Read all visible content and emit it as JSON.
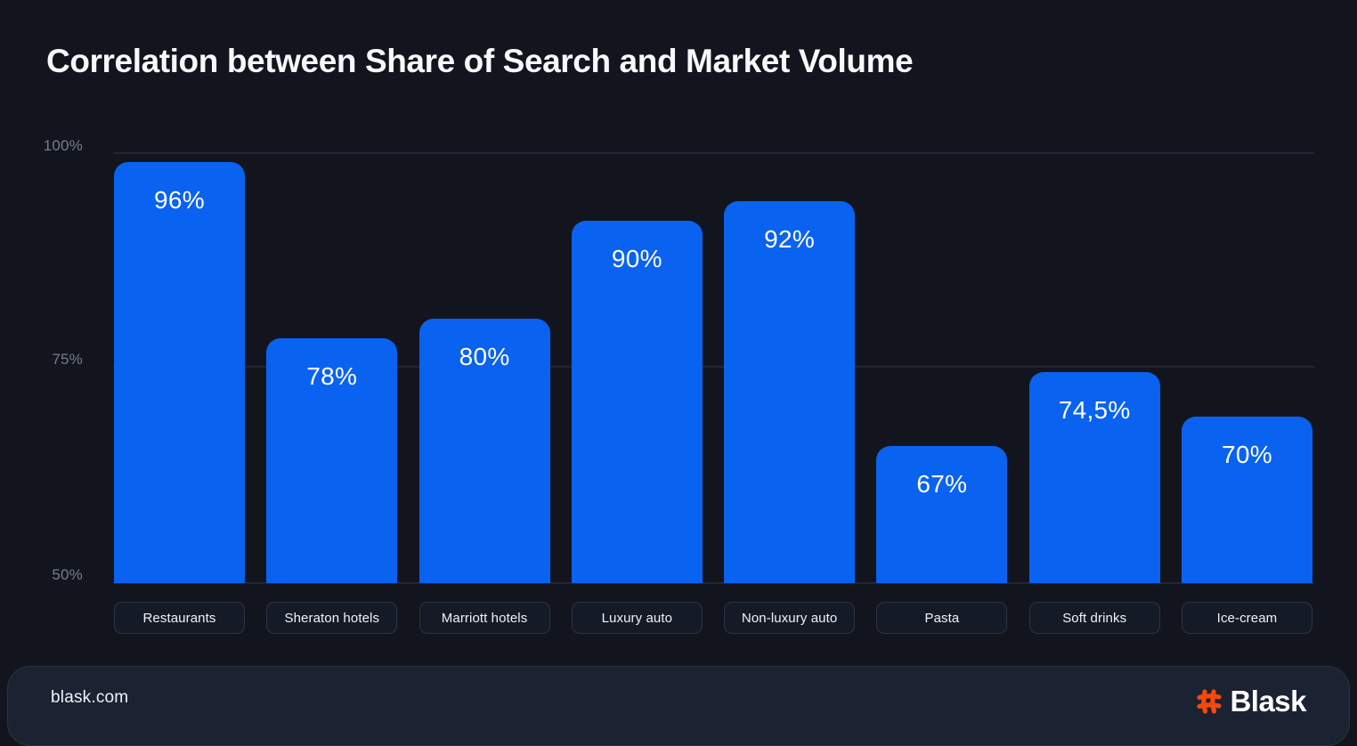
{
  "title": "Correlation between Share of Search and Market Volume",
  "chart_data": {
    "type": "bar",
    "title": "Correlation between Share of Search and Market Volume",
    "categories": [
      "Restaurants",
      "Sheraton hotels",
      "Marriott hotels",
      "Luxury auto",
      "Non-luxury auto",
      "Pasta",
      "Soft drinks",
      "Ice-cream"
    ],
    "values": [
      96,
      78,
      80,
      90,
      92,
      67,
      74.5,
      70
    ],
    "value_labels": [
      "96%",
      "78%",
      "80%",
      "90%",
      "92%",
      "67%",
      "74,5%",
      "70%"
    ],
    "xlabel": "",
    "ylabel": "",
    "y_ticks": [
      "100%",
      "75%",
      "50%"
    ],
    "ylim": [
      50,
      100
    ],
    "grid": true,
    "legend": false,
    "bar_color": "#0A62F1"
  },
  "colors": {
    "background": "#13151E",
    "bar_blue": "#0A62F1",
    "brand_orange": "#F4490D",
    "grid_line": "#242B3A"
  },
  "footer": {
    "site": "blask.com",
    "brand": "Blask",
    "logo_icon": "hash-icon"
  }
}
